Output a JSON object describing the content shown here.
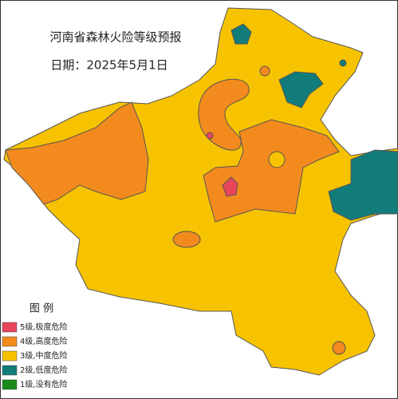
{
  "header": {
    "title": "河南省森林火险等级预报",
    "date": "日期：2025年5月1日"
  },
  "legend": {
    "title": "图  例",
    "items": [
      {
        "label": "5级,极度危险",
        "color": "#e8465c"
      },
      {
        "label": "4级,高度危险",
        "color": "#f28a1e"
      },
      {
        "label": "3级,中度危险",
        "color": "#f7c300"
      },
      {
        "label": "2级,低度危险",
        "color": "#117c7a"
      },
      {
        "label": "1级,没有危险",
        "color": "#1a8a1a"
      }
    ]
  }
}
